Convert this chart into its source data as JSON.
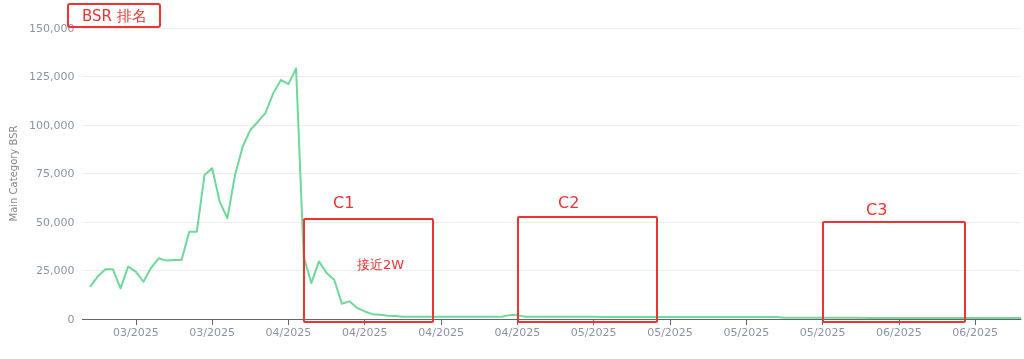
{
  "chart_data": {
    "type": "line",
    "title": "BSR 排名",
    "ylabel": "Main Category BSR",
    "categories": [
      null,
      null,
      null,
      null,
      null,
      null,
      null,
      "03/2025",
      null,
      null,
      null,
      null,
      null,
      null,
      null,
      null,
      null,
      "03/2025",
      null,
      null,
      null,
      null,
      null,
      null,
      null,
      null,
      null,
      "04/2025",
      null,
      null,
      null,
      null,
      null,
      null,
      null,
      null,
      null,
      "04/2025",
      null,
      null,
      null,
      null,
      null,
      null,
      null,
      null,
      null,
      "04/2025",
      null,
      null,
      null,
      null,
      null,
      null,
      null,
      null,
      null,
      "04/2025",
      null,
      null,
      null,
      null,
      null,
      null,
      null,
      null,
      null,
      "05/2025",
      null,
      null,
      null,
      null,
      null,
      null,
      null,
      null,
      null,
      "05/2025",
      null,
      null,
      null,
      null,
      null,
      null,
      null,
      null,
      null,
      "05/2025",
      null,
      null,
      null,
      null,
      null,
      null,
      null,
      null,
      null,
      "05/2025",
      null,
      null,
      null,
      null,
      null,
      null,
      null,
      null,
      null,
      "06/2025",
      null,
      null,
      null,
      null,
      null,
      null,
      null,
      null,
      null,
      "06/2025",
      null,
      null,
      null,
      null,
      null,
      null
    ],
    "series": [
      {
        "color": "#6fd99a",
        "values": [
          null,
          16600,
          21800,
          25600,
          25600,
          15800,
          27000,
          24400,
          19200,
          26400,
          31300,
          30100,
          30400,
          30400,
          45000,
          45000,
          74200,
          77700,
          60500,
          51900,
          74200,
          88800,
          97400,
          101700,
          106300,
          116300,
          123200,
          121100,
          129200,
          32100,
          18500,
          29700,
          23700,
          20200,
          7900,
          9100,
          5700,
          3900,
          2500,
          2200,
          1700,
          1500,
          1200,
          1200,
          1200,
          1200,
          1200,
          1200,
          1200,
          1200,
          1200,
          1200,
          1200,
          1200,
          1200,
          1200,
          2000,
          2000,
          1200,
          1200,
          1200,
          1200,
          1200,
          1200,
          1200,
          1200,
          1200,
          1200,
          1000,
          1000,
          1000,
          1000,
          1000,
          1000,
          1000,
          1000,
          1000,
          1000,
          1000,
          1000,
          1000,
          1000,
          1000,
          1000,
          1000,
          1000,
          1000,
          1000,
          1000,
          1000,
          1000,
          1000,
          600,
          600,
          600,
          600,
          600,
          600,
          600,
          600,
          600,
          600,
          600,
          500,
          500,
          500,
          500,
          500,
          500,
          500,
          500,
          500,
          500,
          500,
          500,
          500,
          500,
          500,
          500,
          500,
          500,
          500,
          500,
          500
        ]
      }
    ],
    "ylim": [
      0,
      150000
    ],
    "yticks": [
      {
        "value": 0,
        "label": "0"
      },
      {
        "value": 25000,
        "label": "25,000"
      },
      {
        "value": 50000,
        "label": "50,000"
      },
      {
        "value": 75000,
        "label": "75,000"
      },
      {
        "value": 100000,
        "label": "100,000"
      },
      {
        "value": 125000,
        "label": "125,000"
      },
      {
        "value": 150000,
        "label": "150,000"
      }
    ],
    "annotations": [
      "C1",
      "C2",
      "C3",
      "接近2W"
    ],
    "grid": "y",
    "marker": "none",
    "line_style": "solid"
  }
}
